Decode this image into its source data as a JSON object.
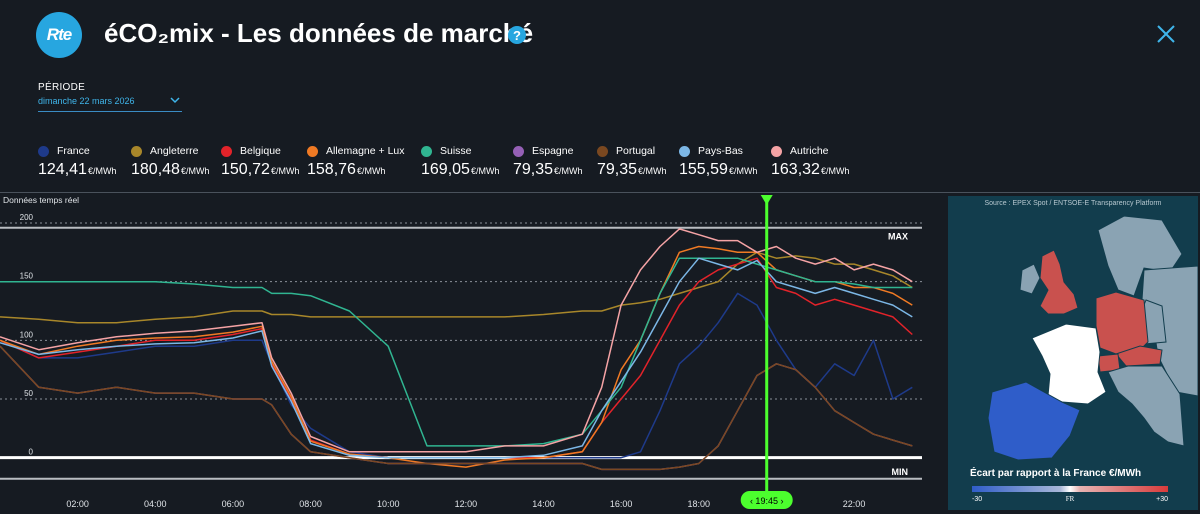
{
  "header": {
    "logo_text": "Rte",
    "title": "éCO₂mix - Les données de marché",
    "help_label": "?"
  },
  "period": {
    "label": "PÉRIODE",
    "value": "dimanche 22 mars 2026"
  },
  "legend": [
    {
      "name": "France",
      "value": "124,41",
      "unit": "€/MWh",
      "color": "#1e3a8a"
    },
    {
      "name": "Angleterre",
      "value": "180,48",
      "unit": "€/MWh",
      "color": "#a8872a"
    },
    {
      "name": "Belgique",
      "value": "150,72",
      "unit": "€/MWh",
      "color": "#e2232a"
    },
    {
      "name": "Allemagne + Lux",
      "value": "158,76",
      "unit": "€/MWh",
      "color": "#f07a24"
    },
    {
      "name": "Suisse",
      "value": "169,05",
      "unit": "€/MWh",
      "color": "#30b591"
    },
    {
      "name": "Espagne",
      "value": "79,35",
      "unit": "€/MWh",
      "color": "#9560b6"
    },
    {
      "name": "Portugal",
      "value": "79,35",
      "unit": "€/MWh",
      "color": "#7a4820"
    },
    {
      "name": "Pays-Bas",
      "value": "155,59",
      "unit": "€/MWh",
      "color": "#7cb7e6"
    },
    {
      "name": "Autriche",
      "value": "163,32",
      "unit": "€/MWh",
      "color": "#f5a3a5"
    }
  ],
  "chart_label": "Données temps réel",
  "chart_data": {
    "type": "line",
    "ylim": [
      -25,
      200
    ],
    "y_ticks": [
      "0",
      "50",
      "100",
      "150",
      "200"
    ],
    "x_ticks": [
      "02:00",
      "04:00",
      "06:00",
      "08:00",
      "10:00",
      "12:00",
      "14:00",
      "16:00",
      "18:00",
      "20:00",
      "22:00"
    ],
    "x_tick_hours": [
      2,
      4,
      6,
      8,
      10,
      12,
      14,
      16,
      18,
      20,
      22
    ],
    "xlim_hours": [
      0,
      23.75
    ],
    "max_label": "MAX",
    "min_label": "MIN",
    "max_value": 196,
    "min_value": -18,
    "cursor_label": "19:45",
    "cursor_hour": 19.75,
    "x": [
      0,
      1,
      2,
      3,
      4,
      5,
      6,
      6.75,
      7,
      7.5,
      8,
      9,
      10,
      11,
      12,
      13,
      14,
      15,
      15.5,
      16,
      16.5,
      17,
      17.5,
      18,
      18.5,
      19,
      19.5,
      20,
      20.5,
      21,
      21.5,
      22,
      22.5,
      23,
      23.5
    ],
    "series": [
      {
        "name": "France",
        "color": "#1e3a8a",
        "values": [
          100,
          85,
          85,
          90,
          95,
          95,
          100,
          100,
          80,
          45,
          25,
          5,
          0,
          0,
          0,
          0,
          0,
          0,
          0,
          0,
          5,
          40,
          80,
          95,
          115,
          140,
          130,
          100,
          75,
          60,
          80,
          70,
          100,
          50,
          60
        ]
      },
      {
        "name": "Angleterre",
        "color": "#a8872a",
        "values": [
          120,
          118,
          115,
          115,
          118,
          120,
          125,
          125,
          122,
          122,
          120,
          120,
          120,
          120,
          120,
          120,
          122,
          125,
          125,
          130,
          132,
          135,
          140,
          145,
          150,
          165,
          175,
          170,
          172,
          170,
          165,
          165,
          160,
          155,
          145
        ]
      },
      {
        "name": "Belgique",
        "color": "#e2232a",
        "values": [
          100,
          85,
          90,
          95,
          100,
          100,
          105,
          110,
          80,
          50,
          15,
          3,
          0,
          0,
          0,
          0,
          0,
          5,
          30,
          50,
          70,
          100,
          130,
          150,
          160,
          165,
          170,
          145,
          140,
          130,
          135,
          130,
          125,
          120,
          105
        ]
      },
      {
        "name": "Allemagne + Lux",
        "color": "#f07a24",
        "values": [
          100,
          88,
          95,
          100,
          102,
          103,
          107,
          112,
          82,
          52,
          14,
          3,
          0,
          -5,
          -8,
          -2,
          0,
          5,
          30,
          75,
          100,
          140,
          175,
          180,
          178,
          175,
          175,
          160,
          155,
          150,
          150,
          145,
          145,
          140,
          130
        ]
      },
      {
        "name": "Suisse",
        "color": "#30b591",
        "values": [
          150,
          150,
          150,
          150,
          150,
          148,
          145,
          145,
          140,
          140,
          138,
          125,
          95,
          10,
          10,
          10,
          12,
          20,
          40,
          60,
          100,
          140,
          170,
          170,
          170,
          170,
          165,
          160,
          155,
          150,
          150,
          148,
          145,
          145,
          145
        ]
      },
      {
        "name": "Espagne",
        "color": "#9560b6",
        "values": [
          95,
          60,
          55,
          60,
          55,
          55,
          50,
          50,
          45,
          20,
          5,
          0,
          -5,
          -5,
          -5,
          -5,
          -5,
          -5,
          -10,
          -10,
          -10,
          -10,
          -8,
          -5,
          10,
          40,
          70,
          80,
          75,
          60,
          40,
          30,
          20,
          15,
          10
        ]
      },
      {
        "name": "Portugal",
        "color": "#7a4820",
        "values": [
          95,
          60,
          55,
          60,
          55,
          55,
          50,
          50,
          45,
          20,
          5,
          0,
          -5,
          -5,
          -5,
          -5,
          -5,
          -5,
          -10,
          -10,
          -10,
          -10,
          -8,
          -5,
          10,
          40,
          70,
          80,
          75,
          60,
          40,
          30,
          20,
          15,
          10
        ]
      },
      {
        "name": "Pays-Bas",
        "color": "#7cb7e6",
        "values": [
          98,
          88,
          92,
          95,
          97,
          98,
          102,
          108,
          78,
          48,
          12,
          2,
          0,
          0,
          0,
          0,
          2,
          10,
          40,
          65,
          90,
          120,
          150,
          170,
          165,
          160,
          168,
          150,
          145,
          140,
          145,
          140,
          135,
          130,
          120
        ]
      },
      {
        "name": "Autriche",
        "color": "#f5a3a5",
        "values": [
          103,
          92,
          98,
          103,
          106,
          108,
          112,
          115,
          85,
          55,
          18,
          5,
          5,
          5,
          5,
          10,
          10,
          20,
          60,
          130,
          160,
          180,
          195,
          190,
          185,
          185,
          175,
          180,
          170,
          165,
          170,
          160,
          165,
          160,
          150
        ]
      }
    ]
  },
  "map": {
    "source": "Source : EPEX Spot / ENTSOE-E Transparency Platform",
    "legend_title": "Écart par rapport à la France €/MWh",
    "scale_min": "-30",
    "scale_mid": "FR",
    "scale_max": "+30"
  }
}
